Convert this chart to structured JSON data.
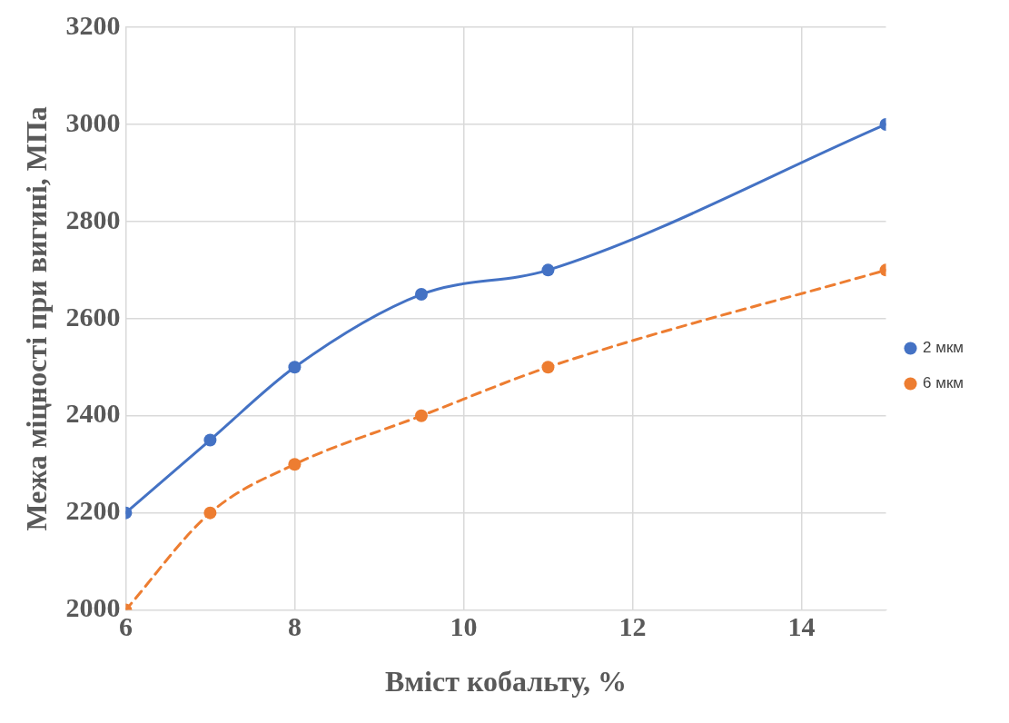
{
  "chart_data": {
    "type": "line",
    "xlabel": "Вміст кобальту, %",
    "ylabel": "Межа міцності при вигині, МПа",
    "xlim": [
      6,
      15
    ],
    "xticks": [
      6,
      8,
      10,
      12,
      14
    ],
    "ylim": [
      2000,
      3200
    ],
    "yticks": [
      2000,
      2200,
      2400,
      2600,
      2800,
      3000,
      3200
    ],
    "grid": true,
    "legend": "right",
    "marker": "circle",
    "series": [
      {
        "name": "2 мкм",
        "color": "#4472c4",
        "line_style": "solid",
        "x": [
          6,
          7,
          8,
          9.5,
          11,
          15
        ],
        "values": [
          2200,
          2350,
          2500,
          2650,
          2700,
          3000
        ]
      },
      {
        "name": "6 мкм",
        "color": "#ed7d31",
        "line_style": "dashed",
        "x": [
          6,
          7,
          8,
          9.5,
          11,
          15
        ],
        "values": [
          2000,
          2200,
          2300,
          2400,
          2500,
          2700
        ]
      }
    ]
  }
}
